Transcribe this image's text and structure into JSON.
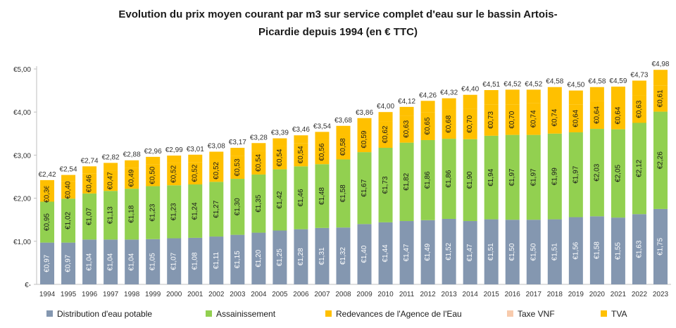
{
  "title": "Evolution du prix moyen courant par m3 sur service complet d'eau sur le bassin Artois-\nPicardie depuis 1994 (en € TTC)",
  "colors": {
    "distribution": "#8497b0",
    "assainissement": "#92d050",
    "redevances": "#ffc000",
    "taxe_vnf": "#f8cbad",
    "tva": "#ffc000",
    "axis": "#bfbfbf",
    "text": "#333333"
  },
  "chart_data": {
    "type": "bar",
    "stacked": true,
    "categories": [
      "1994",
      "1995",
      "1996",
      "1997",
      "1998",
      "1999",
      "2000",
      "2001",
      "2002",
      "2003",
      "2004",
      "2005",
      "2006",
      "2007",
      "2008",
      "2009",
      "2010",
      "2011",
      "2012",
      "2013",
      "2014",
      "2015",
      "2016",
      "2017",
      "2018",
      "2019",
      "2020",
      "2021",
      "2022",
      "2023"
    ],
    "yticks": [
      "€-",
      "€1,00",
      "€2,00",
      "€3,00",
      "€4,00",
      "€5,00"
    ],
    "ylim": [
      0,
      5
    ],
    "grid": false,
    "legend_position": "bottom",
    "series": [
      {
        "name": "Distribution d'eau potable",
        "color_key": "distribution",
        "values": [
          0.97,
          0.97,
          1.04,
          1.04,
          1.04,
          1.05,
          1.07,
          1.08,
          1.11,
          1.15,
          1.2,
          1.25,
          1.28,
          1.31,
          1.32,
          1.4,
          1.44,
          1.47,
          1.49,
          1.52,
          1.47,
          1.51,
          1.5,
          1.5,
          1.51,
          1.56,
          1.58,
          1.55,
          1.63,
          1.75
        ],
        "labels": [
          "€0,97",
          "€0,97",
          "€1,04",
          "€1,04",
          "€1,04",
          "€1,05",
          "€1,07",
          "€1,08",
          "€1,11",
          "€1,15",
          "€1,20",
          "€1,25",
          "€1,28",
          "€1,31",
          "€1,32",
          "€1,40",
          "€1,44",
          "€1,47",
          "€1,49",
          "€1,52",
          "€1,47",
          "€1,51",
          "€1,50",
          "€1,50",
          "€1,51",
          "€1,56",
          "€1,58",
          "€1,55",
          "€1,63",
          "€1,75"
        ]
      },
      {
        "name": "Assainissement",
        "color_key": "assainissement",
        "values": [
          0.95,
          1.02,
          1.07,
          1.13,
          1.18,
          1.23,
          1.23,
          1.24,
          1.27,
          1.3,
          1.35,
          1.42,
          1.46,
          1.48,
          1.58,
          1.67,
          1.73,
          1.82,
          1.86,
          1.86,
          1.9,
          1.94,
          1.97,
          1.97,
          1.99,
          1.97,
          2.03,
          2.05,
          2.12,
          2.26
        ],
        "labels": [
          "€0,95",
          "€1,02",
          "€1,07",
          "€1,13",
          "€1,18",
          "€1,23",
          "€1,23",
          "€1,24",
          "€1,27",
          "€1,30",
          "€1,35",
          "€1,42",
          "€1,46",
          "€1,48",
          "€1,58",
          "€1,67",
          "€1,73",
          "€1,82",
          "€1,86",
          "€1,86",
          "€1,90",
          "€1,94",
          "€1,97",
          "€1,97",
          "€1,99",
          "€1,97",
          "€2,03",
          "€2,05",
          "€2,12",
          "€2,26"
        ]
      },
      {
        "name": "Redevances de l'Agence de l'Eau",
        "color_key": "redevances",
        "values": [
          0.36,
          0.4,
          0.46,
          0.47,
          0.49,
          0.5,
          0.52,
          0.52,
          0.52,
          0.53,
          0.54,
          0.54,
          0.54,
          0.56,
          0.58,
          0.59,
          0.62,
          0.63,
          0.65,
          0.68,
          0.7,
          0.73,
          0.7,
          0.74,
          0.74,
          0.64,
          0.64,
          0.64,
          0.63,
          0.61
        ],
        "labels": [
          "€0,36",
          "€0,40",
          "€0,46",
          "€0,47",
          "€0,49",
          "€0,50",
          "€0,52",
          "€0,52",
          "€0,52",
          "€0,53",
          "€0,54",
          "€0,54",
          "€0,54",
          "€0,56",
          "€0,58",
          "€0,59",
          "€0,62",
          "€0,63",
          "€0,65",
          "€0,68",
          "€0,70",
          "€0,73",
          "€0,70",
          "€0,74",
          "€0,74",
          "€0,64",
          "€0,64",
          "€0,64",
          "€0,63",
          "€0,61"
        ]
      },
      {
        "name": "Taxe VNF",
        "color_key": "taxe_vnf",
        "values": [
          0,
          0,
          0,
          0,
          0,
          0,
          0,
          0,
          0,
          0,
          0,
          0,
          0,
          0,
          0,
          0,
          0,
          0,
          0,
          0,
          0,
          0,
          0,
          0,
          0,
          0,
          0,
          0,
          0,
          0
        ],
        "labels": []
      },
      {
        "name": "TVA",
        "color_key": "tva",
        "values": [
          0.14,
          0.15,
          0.17,
          0.18,
          0.17,
          0.18,
          0.17,
          0.17,
          0.18,
          0.19,
          0.19,
          0.18,
          0.18,
          0.19,
          0.2,
          0.2,
          0.21,
          0.2,
          0.26,
          0.26,
          0.33,
          0.33,
          0.35,
          0.31,
          0.34,
          0.33,
          0.33,
          0.35,
          0.35,
          0.36
        ],
        "labels": []
      }
    ],
    "totals": [
      "€2,42",
      "€2,54",
      "€2,74",
      "€2,82",
      "€2,88",
      "€2,96",
      "€2,99",
      "€3,01",
      "€3,08",
      "€3,17",
      "€3,28",
      "€3,39",
      "€3,46",
      "€3,54",
      "€3,68",
      "€3,86",
      "€4,00",
      "€4,12",
      "€4,26",
      "€4,32",
      "€4,40",
      "€4,51",
      "€4,52",
      "€4,52",
      "€4,58",
      "€4,50",
      "€4,58",
      "€4,59",
      "€4,73",
      "€4,98"
    ],
    "total_values": [
      2.42,
      2.54,
      2.74,
      2.82,
      2.88,
      2.96,
      2.99,
      3.01,
      3.08,
      3.17,
      3.28,
      3.39,
      3.46,
      3.54,
      3.68,
      3.86,
      4.0,
      4.12,
      4.26,
      4.32,
      4.4,
      4.51,
      4.52,
      4.52,
      4.58,
      4.5,
      4.58,
      4.59,
      4.73,
      4.98
    ]
  }
}
